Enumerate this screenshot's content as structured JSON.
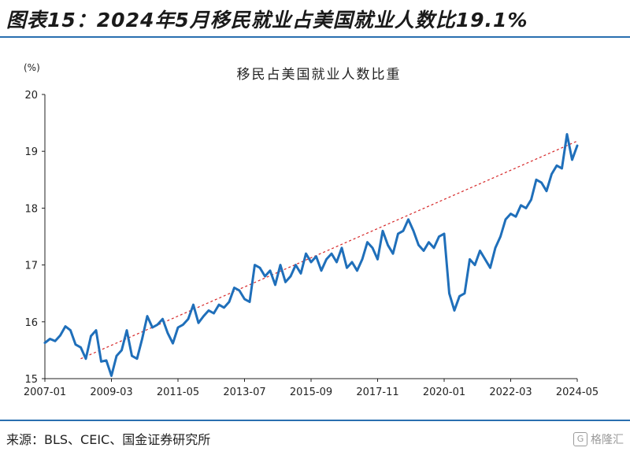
{
  "figure_title": "图表15：2024年5月移民就业占美国就业人数比19.1%",
  "source": "来源：BLS、CEIC、国金证券研究所",
  "watermark": "格隆汇",
  "colors": {
    "series": "#1f6fba",
    "trend": "#d62728",
    "rule": "#2a6fb0"
  },
  "chart_data": {
    "type": "line",
    "title": "移民占美国就业人数比重",
    "unit_label": "(%)",
    "ylim": [
      15,
      20
    ],
    "yticks": [
      15,
      16,
      17,
      18,
      19,
      20
    ],
    "x_range": [
      "2007-01",
      "2024-05"
    ],
    "xticks": [
      "2007-01",
      "2009-03",
      "2011-05",
      "2013-07",
      "2015-09",
      "2017-11",
      "2020-01",
      "2022-03",
      "2024-05"
    ],
    "grid": false,
    "legend": "none",
    "series": [
      {
        "x": [
          "2007-01",
          "2007-03",
          "2007-05",
          "2007-07",
          "2007-09",
          "2007-11",
          "2008-01",
          "2008-03",
          "2008-05",
          "2008-07",
          "2008-09",
          "2008-11",
          "2009-01",
          "2009-03",
          "2009-05",
          "2009-07",
          "2009-09",
          "2009-11",
          "2010-01",
          "2010-03",
          "2010-05",
          "2010-07",
          "2010-09",
          "2010-11",
          "2011-01",
          "2011-03",
          "2011-05",
          "2011-07",
          "2011-09",
          "2011-11",
          "2012-01",
          "2012-03",
          "2012-05",
          "2012-07",
          "2012-09",
          "2012-11",
          "2013-01",
          "2013-03",
          "2013-05",
          "2013-07",
          "2013-09",
          "2013-11",
          "2014-01",
          "2014-03",
          "2014-05",
          "2014-07",
          "2014-09",
          "2014-11",
          "2015-01",
          "2015-03",
          "2015-05",
          "2015-07",
          "2015-09",
          "2015-11",
          "2016-01",
          "2016-03",
          "2016-05",
          "2016-07",
          "2016-09",
          "2016-11",
          "2017-01",
          "2017-03",
          "2017-05",
          "2017-07",
          "2017-09",
          "2017-11",
          "2018-01",
          "2018-03",
          "2018-05",
          "2018-07",
          "2018-09",
          "2018-11",
          "2019-01",
          "2019-03",
          "2019-05",
          "2019-07",
          "2019-09",
          "2019-11",
          "2020-01",
          "2020-03",
          "2020-05",
          "2020-07",
          "2020-09",
          "2020-11",
          "2021-01",
          "2021-03",
          "2021-05",
          "2021-07",
          "2021-09",
          "2021-11",
          "2022-01",
          "2022-03",
          "2022-05",
          "2022-07",
          "2022-09",
          "2022-11",
          "2023-01",
          "2023-03",
          "2023-05",
          "2023-07",
          "2023-09",
          "2023-11",
          "2024-01",
          "2024-03",
          "2024-05"
        ],
        "y": [
          15.63,
          15.7,
          15.66,
          15.76,
          15.92,
          15.85,
          15.6,
          15.55,
          15.35,
          15.75,
          15.85,
          15.3,
          15.32,
          15.05,
          15.4,
          15.5,
          15.85,
          15.4,
          15.35,
          15.7,
          16.1,
          15.9,
          15.95,
          16.05,
          15.8,
          15.62,
          15.9,
          15.95,
          16.05,
          16.3,
          15.98,
          16.1,
          16.2,
          16.15,
          16.3,
          16.25,
          16.35,
          16.6,
          16.55,
          16.4,
          16.35,
          17.0,
          16.95,
          16.8,
          16.9,
          16.65,
          17.0,
          16.7,
          16.8,
          17.0,
          16.85,
          17.2,
          17.05,
          17.15,
          16.9,
          17.1,
          17.2,
          17.05,
          17.3,
          16.95,
          17.05,
          16.9,
          17.1,
          17.4,
          17.3,
          17.1,
          17.6,
          17.35,
          17.2,
          17.55,
          17.6,
          17.8,
          17.6,
          17.35,
          17.25,
          17.4,
          17.3,
          17.5,
          17.55,
          16.5,
          16.2,
          16.45,
          16.5,
          17.1,
          17.0,
          17.25,
          17.1,
          16.95,
          17.3,
          17.5,
          17.8,
          17.9,
          17.85,
          18.05,
          18.0,
          18.15,
          18.5,
          18.45,
          18.3,
          18.6,
          18.75,
          18.7,
          19.3,
          18.85,
          19.1
        ]
      },
      {
        "x": [
          "2008-03",
          "2024-05"
        ],
        "y": [
          15.35,
          19.18
        ]
      }
    ]
  }
}
